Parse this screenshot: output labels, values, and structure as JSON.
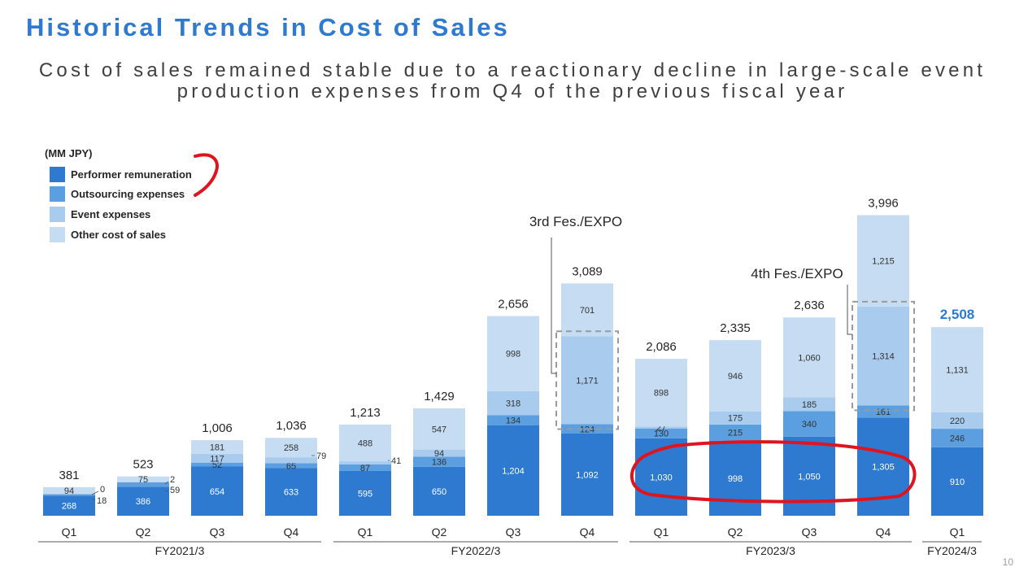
{
  "page": {
    "title": "Historical Trends in Cost of Sales",
    "subtitle": "Cost of sales remained stable due to a reactionary decline in large-scale event production expenses from Q4 of the previous fiscal year",
    "page_number": "10"
  },
  "legend": {
    "unit": "(MM JPY)",
    "items": [
      {
        "label": "Performer remuneration",
        "color": "#2e7ad1"
      },
      {
        "label": "Outsourcing expenses",
        "color": "#5b9fe0"
      },
      {
        "label": "Event expenses",
        "color": "#a9cbed"
      },
      {
        "label": "Other cost of sales",
        "color": "#c6dcf2"
      }
    ]
  },
  "colors": {
    "performer": "#2e7ad1",
    "outsourcing": "#5b9fe0",
    "event": "#a9cbed",
    "other": "#c6dcf2",
    "annotation": "#e0141e",
    "highlight_total": "#2e7ad1"
  },
  "chart_data": {
    "type": "bar",
    "stacked": true,
    "unit": "(MM JPY)",
    "categories": [
      "Q1",
      "Q2",
      "Q3",
      "Q4",
      "Q1",
      "Q2",
      "Q3",
      "Q4",
      "Q1",
      "Q2",
      "Q3",
      "Q4",
      "Q1"
    ],
    "fiscal_year_groups": [
      {
        "label": "FY2021/3",
        "start": 0,
        "end": 3
      },
      {
        "label": "FY2022/3",
        "start": 4,
        "end": 7
      },
      {
        "label": "FY2023/3",
        "start": 8,
        "end": 11
      },
      {
        "label": "FY2024/3",
        "start": 12,
        "end": 12
      }
    ],
    "series": [
      {
        "name": "Performer remuneration",
        "values": [
          268,
          386,
          654,
          633,
          595,
          650,
          1204,
          1092,
          1030,
          998,
          1050,
          1305,
          910
        ]
      },
      {
        "name": "Outsourcing expenses",
        "values": [
          18,
          59,
          52,
          65,
          87,
          136,
          134,
          124,
          130,
          215,
          340,
          161,
          246
        ]
      },
      {
        "name": "Event expenses",
        "values": [
          0,
          2,
          117,
          79,
          41,
          94,
          318,
          1171,
          27,
          175,
          185,
          1314,
          220
        ]
      },
      {
        "name": "Other cost of sales",
        "values": [
          94,
          75,
          181,
          258,
          488,
          547,
          998,
          701,
          898,
          946,
          1060,
          1215,
          1131
        ]
      }
    ],
    "segment_labels": [
      [
        "268",
        "18",
        "0",
        "94"
      ],
      [
        "386",
        "59",
        "2",
        "75"
      ],
      [
        "654",
        "52",
        "117",
        "181"
      ],
      [
        "633",
        "65",
        "79",
        "258"
      ],
      [
        "595",
        "87",
        "41",
        "488"
      ],
      [
        "650",
        "136",
        "94",
        "547"
      ],
      [
        "1,204",
        "134",
        "318",
        "998"
      ],
      [
        "1,092",
        "124",
        "1,171",
        "701"
      ],
      [
        "1,030",
        "130",
        "27",
        "898"
      ],
      [
        "998",
        "215",
        "175",
        "946"
      ],
      [
        "1,050",
        "340",
        "185",
        "1,060"
      ],
      [
        "1,305",
        "161",
        "1,314",
        "1,215"
      ],
      [
        "910",
        "246",
        "220",
        "1,131"
      ]
    ],
    "totals": [
      381,
      523,
      1006,
      1036,
      1213,
      1429,
      2656,
      3089,
      2086,
      2335,
      2636,
      3996,
      2508
    ],
    "total_labels": [
      "381",
      "523",
      "1,006",
      "1,036",
      "1,213",
      "1,429",
      "2,656",
      "3,089",
      "2,086",
      "2,335",
      "2,636",
      "3,996",
      "2,508"
    ],
    "highlight_index": 12,
    "annotations": [
      {
        "text": "3rd Fes./EXPO",
        "bar_index": 7
      },
      {
        "text": "4th Fes./EXPO",
        "bar_index": 11
      }
    ],
    "y_range": [
      0,
      4000
    ],
    "grid": false,
    "legend_position": "top-left"
  }
}
